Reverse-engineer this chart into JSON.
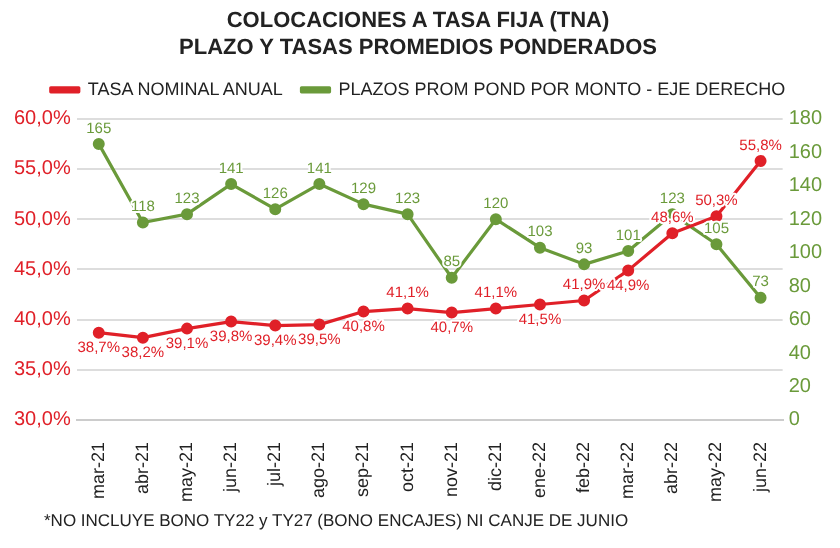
{
  "chart_data": {
    "type": "line",
    "title": [
      "COLOCACIONES A TASA FIJA (TNA)",
      "PLAZO Y TASAS PROMEDIOS PONDERADOS"
    ],
    "categories": [
      "mar-21",
      "abr-21",
      "may-21",
      "jun-21",
      "jul-21",
      "ago-21",
      "sep-21",
      "oct-21",
      "nov-21",
      "dic-21",
      "ene-22",
      "feb-22",
      "mar-22",
      "abr-22",
      "may-22",
      "jun-22"
    ],
    "series": [
      {
        "name": "TASA NOMINAL ANUAL",
        "color": "#e02028",
        "values": [
          38.7,
          38.2,
          39.1,
          39.8,
          39.4,
          39.5,
          40.8,
          41.1,
          40.7,
          41.1,
          41.5,
          41.9,
          44.9,
          48.6,
          50.3,
          55.8
        ],
        "value_labels": [
          "38,7%",
          "38,2%",
          "39,1%",
          "39,8%",
          "39,4%",
          "39,5%",
          "40,8%",
          "41,1%",
          "40,7%",
          "41,1%",
          "41,5%",
          "41,9%",
          "44,9%",
          "48,6%",
          "50,3%",
          "55,8%"
        ]
      },
      {
        "name": "PLAZOS PROM POND POR MONTO - EJE DERECHO",
        "color": "#6a9a3a",
        "axis": "y2",
        "values": [
          165,
          118,
          123,
          141,
          126,
          141,
          129,
          123,
          85,
          120,
          103,
          93,
          101,
          123,
          105,
          73
        ],
        "value_labels": [
          "165",
          "118",
          "123",
          "141",
          "126",
          "141",
          "129",
          "123",
          "85",
          "120",
          "103",
          "93",
          "101",
          "123",
          "105",
          "73"
        ]
      }
    ],
    "ylim": [
      30,
      60
    ],
    "yticks": [
      {
        "value": 30,
        "label": "30,0%"
      },
      {
        "value": 35,
        "label": "35,0%"
      },
      {
        "value": 40,
        "label": "40,0%"
      },
      {
        "value": 45,
        "label": "45,0%"
      },
      {
        "value": 50,
        "label": "50,0%"
      },
      {
        "value": 55,
        "label": "55,0%"
      },
      {
        "value": 60,
        "label": "60,0%"
      }
    ],
    "y2lim": [
      0,
      180
    ],
    "y2ticks": [
      0,
      20,
      40,
      60,
      80,
      100,
      120,
      140,
      160,
      180
    ],
    "grid": "y",
    "legend": "top",
    "marker": "circle",
    "line_style": "solid",
    "annotations": [
      "*NO INCLUYE BONO TY22 y TY27 (BONO ENCAJES) NI CANJE DE JUNIO"
    ]
  }
}
